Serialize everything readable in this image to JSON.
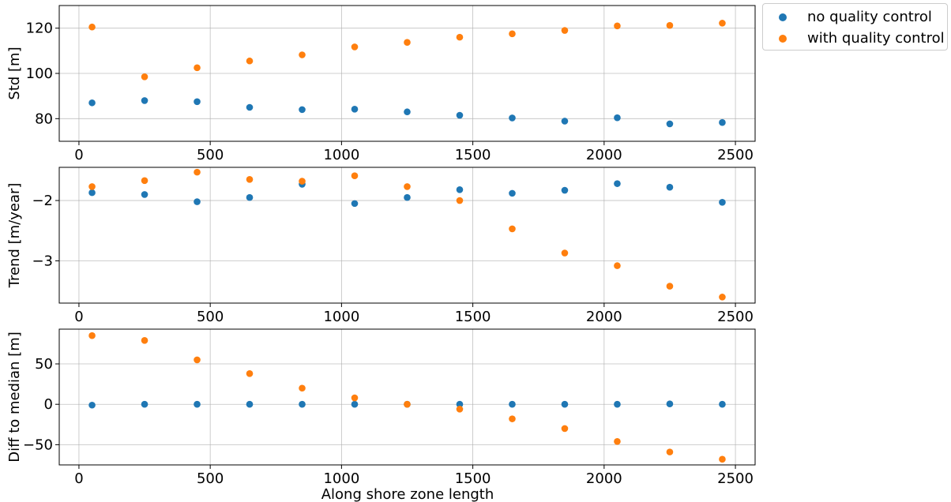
{
  "chart_data": {
    "type": "scatter",
    "legend_placement": "outside top-right",
    "grid": true,
    "colors": {
      "no_qc": "#1f77b4",
      "with_qc": "#ff7f0e"
    },
    "legend": [
      {
        "name": "no quality control",
        "color": "#1f77b4"
      },
      {
        "name": "with quality control",
        "color": "#ff7f0e"
      }
    ],
    "xlabel": "Along shore zone length",
    "xlim": [
      -75,
      2575
    ],
    "xticks": [
      0,
      500,
      1000,
      1500,
      2000,
      2500
    ],
    "x": [
      50,
      250,
      450,
      650,
      850,
      1050,
      1250,
      1450,
      1650,
      1850,
      2050,
      2250,
      2450
    ],
    "panels": [
      {
        "ylabel": "Std [m]",
        "ylim": [
          70,
          130
        ],
        "yticks": [
          80,
          100,
          120
        ],
        "series": [
          {
            "name": "no quality control",
            "values": [
              87,
              88,
              87.5,
              85,
              84,
              84.2,
              83,
              81.5,
              80.3,
              78.9,
              80.4,
              77.7,
              78.3
            ]
          },
          {
            "name": "with quality control",
            "values": [
              120.5,
              98.5,
              102.5,
              105.5,
              108.2,
              111.7,
              113.7,
              116,
              117.5,
              119,
              121,
              121.2,
              122.2
            ]
          }
        ]
      },
      {
        "ylabel": "Trend [m/year]",
        "ylim": [
          -3.7,
          -1.45
        ],
        "yticks": [
          -2,
          -3
        ],
        "series": [
          {
            "name": "no quality control",
            "values": [
              -1.87,
              -1.9,
              -2.02,
              -1.95,
              -1.73,
              -2.05,
              -1.95,
              -1.82,
              -1.88,
              -1.83,
              -1.72,
              -1.78,
              -2.03
            ]
          },
          {
            "name": "with quality control",
            "values": [
              -1.77,
              -1.67,
              -1.53,
              -1.65,
              -1.68,
              -1.59,
              -1.77,
              -2.0,
              -2.47,
              -2.87,
              -3.08,
              -3.42,
              -3.6
            ]
          }
        ]
      },
      {
        "ylabel": "Diff to median [m]",
        "ylim": [
          -75,
          93
        ],
        "yticks": [
          50,
          0,
          -50
        ],
        "series": [
          {
            "name": "no quality control",
            "values": [
              -1,
              0,
              0,
              0,
              0,
              0,
              0,
              0,
              0,
              0,
              0,
              0.5,
              0
            ]
          },
          {
            "name": "with quality control",
            "values": [
              85,
              79,
              55,
              38,
              20,
              8,
              0,
              -6,
              -18,
              -30,
              -46,
              -59,
              -68
            ]
          }
        ]
      }
    ]
  }
}
